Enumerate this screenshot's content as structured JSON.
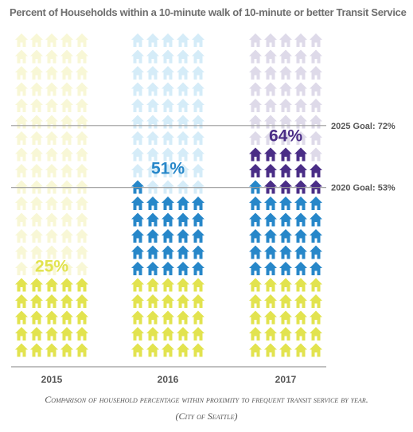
{
  "chart_data": {
    "type": "bar",
    "title": "Percent of Households within a 10-minute walk of 10-minute or better Transit Service",
    "categories": [
      "2015",
      "2016",
      "2017"
    ],
    "values": [
      25,
      51,
      64
    ],
    "value_labels": [
      "25%",
      "51%",
      "64%"
    ],
    "ylim": [
      0,
      100
    ],
    "unit": "%",
    "grid": false,
    "reference_lines": [
      {
        "label": "2025 Goal: 72%",
        "value": 72
      },
      {
        "label": "2020 Goal: 53%",
        "value": 53
      }
    ],
    "colors": {
      "2015": {
        "filled": "#e2e34f",
        "empty": "#f8f7d6"
      },
      "2016": {
        "base": "#e2e34f",
        "gain": "#2787c9",
        "empty": "#d5ecf8"
      },
      "2017": {
        "base": "#e2e34f",
        "carry": "#2787c9",
        "gain": "#4a2d86",
        "empty": "#dedae9"
      },
      "label_2015": "#e2e34f",
      "label_2016": "#2787c9",
      "label_2017": "#4a2d86",
      "goal_line": "#9a9a9a",
      "axis": "#9a9a9a"
    },
    "icon": "house-icon"
  },
  "caption": {
    "line1": "Comparison of household percentage within proximity to frequent transit service by year.",
    "line2": "(City of Seattle)"
  }
}
